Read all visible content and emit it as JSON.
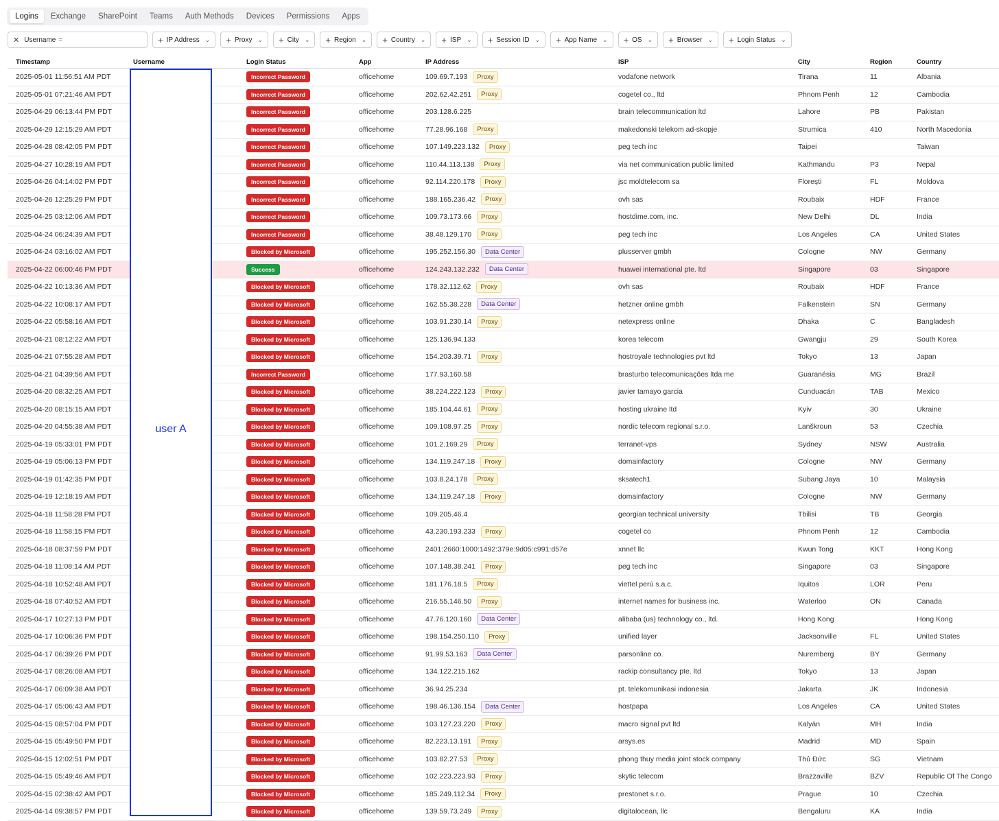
{
  "tabs": [
    {
      "label": "Logins",
      "active": true
    },
    {
      "label": "Exchange"
    },
    {
      "label": "SharePoint"
    },
    {
      "label": "Teams"
    },
    {
      "label": "Auth Methods"
    },
    {
      "label": "Devices"
    },
    {
      "label": "Permissions"
    },
    {
      "label": "Apps"
    }
  ],
  "filter": {
    "field": "Username",
    "operator": "=",
    "remove_icon": "close-icon"
  },
  "filter_chips": [
    "IP Address",
    "Proxy",
    "City",
    "Region",
    "Country",
    "ISP",
    "Session ID",
    "App Name",
    "OS",
    "Browser",
    "Login Status"
  ],
  "columns": {
    "timestamp": "Timestamp",
    "username": "Username",
    "login_status": "Login Status",
    "app": "App",
    "ip": "IP Address",
    "isp": "ISP",
    "city": "City",
    "region": "Region",
    "country": "Country"
  },
  "redaction_label": "user A",
  "colors": {
    "blocked": "#d42a2a",
    "success": "#1e9b45",
    "highlight_row": "#fde4e6",
    "redaction_border": "#1a36e6"
  },
  "rows": [
    [
      "2025-05-01 11:56:51 AM PDT",
      "Incorrect Password",
      "officehome",
      "109.69.7.193",
      "Proxy",
      "vodafone network",
      "Tirana",
      "11",
      "Albania"
    ],
    [
      "2025-05-01 07:21:46 AM PDT",
      "Incorrect Password",
      "officehome",
      "202.62.42.251",
      "Proxy",
      "cogetel co., ltd",
      "Phnom Penh",
      "12",
      "Cambodia"
    ],
    [
      "2025-04-29 06:13:44 PM PDT",
      "Incorrect Password",
      "officehome",
      "203.128.6.225",
      "",
      "brain telecommunication ltd",
      "Lahore",
      "PB",
      "Pakistan"
    ],
    [
      "2025-04-29 12:15:29 AM PDT",
      "Incorrect Password",
      "officehome",
      "77.28.96.168",
      "Proxy",
      "makedonski telekom ad-skopje",
      "Strumica",
      "410",
      "North Macedonia"
    ],
    [
      "2025-04-28 08:42:05 PM PDT",
      "Incorrect Password",
      "officehome",
      "107.149.223.132",
      "Proxy",
      "peg tech inc",
      "Taipei",
      "",
      "Taiwan"
    ],
    [
      "2025-04-27 10:28:19 AM PDT",
      "Incorrect Password",
      "officehome",
      "110.44.113.138",
      "Proxy",
      "via net communication public limited",
      "Kathmandu",
      "P3",
      "Nepal"
    ],
    [
      "2025-04-26 04:14:02 PM PDT",
      "Incorrect Password",
      "officehome",
      "92.114.220.178",
      "Proxy",
      "jsc moldtelecom sa",
      "Florești",
      "FL",
      "Moldova"
    ],
    [
      "2025-04-26 12:25:29 PM PDT",
      "Incorrect Password",
      "officehome",
      "188.165.236.42",
      "Proxy",
      "ovh sas",
      "Roubaix",
      "HDF",
      "France"
    ],
    [
      "2025-04-25 03:12:06 AM PDT",
      "Incorrect Password",
      "officehome",
      "109.73.173.66",
      "Proxy",
      "hostdime.com, inc.",
      "New Delhi",
      "DL",
      "India"
    ],
    [
      "2025-04-24 06:24:39 AM PDT",
      "Incorrect Password",
      "officehome",
      "38.48.129.170",
      "Proxy",
      "peg tech inc",
      "Los Angeles",
      "CA",
      "United States"
    ],
    [
      "2025-04-24 03:16:02 AM PDT",
      "Blocked by Microsoft",
      "officehome",
      "195.252.156.30",
      "Data Center",
      "plusserver gmbh",
      "Cologne",
      "NW",
      "Germany"
    ],
    [
      "2025-04-22 06:00:46 PM PDT",
      "Success",
      "officehome",
      "124.243.132.232",
      "Data Center",
      "huawei international pte. ltd",
      "Singapore",
      "03",
      "Singapore"
    ],
    [
      "2025-04-22 10:13:36 AM PDT",
      "Blocked by Microsoft",
      "officehome",
      "178.32.112.62",
      "Proxy",
      "ovh sas",
      "Roubaix",
      "HDF",
      "France"
    ],
    [
      "2025-04-22 10:08:17 AM PDT",
      "Blocked by Microsoft",
      "officehome",
      "162.55.38.228",
      "Data Center",
      "hetzner online gmbh",
      "Falkenstein",
      "SN",
      "Germany"
    ],
    [
      "2025-04-22 05:58:16 AM PDT",
      "Blocked by Microsoft",
      "officehome",
      "103.91.230.14",
      "Proxy",
      "netexpress online",
      "Dhaka",
      "C",
      "Bangladesh"
    ],
    [
      "2025-04-21 08:12:22 AM PDT",
      "Blocked by Microsoft",
      "officehome",
      "125.136.94.133",
      "",
      "korea telecom",
      "Gwangju",
      "29",
      "South Korea"
    ],
    [
      "2025-04-21 07:55:28 AM PDT",
      "Blocked by Microsoft",
      "officehome",
      "154.203.39.71",
      "Proxy",
      "hostroyale technologies pvt ltd",
      "Tokyo",
      "13",
      "Japan"
    ],
    [
      "2025-04-21 04:39:56 AM PDT",
      "Incorrect Password",
      "officehome",
      "177.93.160.58",
      "",
      "brasturbo telecomunicações ltda me",
      "Guaranésia",
      "MG",
      "Brazil"
    ],
    [
      "2025-04-20 08:32:25 AM PDT",
      "Blocked by Microsoft",
      "officehome",
      "38.224.222.123",
      "Proxy",
      "javier tamayo garcia",
      "Cunduacán",
      "TAB",
      "Mexico"
    ],
    [
      "2025-04-20 08:15:15 AM PDT",
      "Blocked by Microsoft",
      "officehome",
      "185.104.44.61",
      "Proxy",
      "hosting ukraine ltd",
      "Kyiv",
      "30",
      "Ukraine"
    ],
    [
      "2025-04-20 04:55:38 AM PDT",
      "Blocked by Microsoft",
      "officehome",
      "109.108.97.25",
      "Proxy",
      "nordic telecom regional s.r.o.",
      "Lanškroun",
      "53",
      "Czechia"
    ],
    [
      "2025-04-19 05:33:01 PM PDT",
      "Blocked by Microsoft",
      "officehome",
      "101.2.169.29",
      "Proxy",
      "terranet-vps",
      "Sydney",
      "NSW",
      "Australia"
    ],
    [
      "2025-04-19 05:06:13 PM PDT",
      "Blocked by Microsoft",
      "officehome",
      "134.119.247.18",
      "Proxy",
      "domainfactory",
      "Cologne",
      "NW",
      "Germany"
    ],
    [
      "2025-04-19 01:42:35 PM PDT",
      "Blocked by Microsoft",
      "officehome",
      "103.8.24.178",
      "Proxy",
      "sksatech1",
      "Subang Jaya",
      "10",
      "Malaysia"
    ],
    [
      "2025-04-19 12:18:19 AM PDT",
      "Blocked by Microsoft",
      "officehome",
      "134.119.247.18",
      "Proxy",
      "domainfactory",
      "Cologne",
      "NW",
      "Germany"
    ],
    [
      "2025-04-18 11:58:28 PM PDT",
      "Blocked by Microsoft",
      "officehome",
      "109.205.46.4",
      "",
      "georgian technical university",
      "Tbilisi",
      "TB",
      "Georgia"
    ],
    [
      "2025-04-18 11:58:15 PM PDT",
      "Blocked by Microsoft",
      "officehome",
      "43.230.193.233",
      "Proxy",
      "cogetel co",
      "Phnom Penh",
      "12",
      "Cambodia"
    ],
    [
      "2025-04-18 08:37:59 PM PDT",
      "Blocked by Microsoft",
      "officehome",
      "2401:2660:1000:1492:379e:9d05:c991:d57e",
      "",
      "xnnet llc",
      "Kwun Tong",
      "KKT",
      "Hong Kong"
    ],
    [
      "2025-04-18 11:08:14 AM PDT",
      "Blocked by Microsoft",
      "officehome",
      "107.148.38.241",
      "Proxy",
      "peg tech inc",
      "Singapore",
      "03",
      "Singapore"
    ],
    [
      "2025-04-18 10:52:48 AM PDT",
      "Blocked by Microsoft",
      "officehome",
      "181.176.18.5",
      "Proxy",
      "viettel perú s.a.c.",
      "Iquitos",
      "LOR",
      "Peru"
    ],
    [
      "2025-04-18 07:40:52 AM PDT",
      "Blocked by Microsoft",
      "officehome",
      "216.55.146.50",
      "Proxy",
      "internet names for business inc.",
      "Waterloo",
      "ON",
      "Canada"
    ],
    [
      "2025-04-17 10:27:13 PM PDT",
      "Blocked by Microsoft",
      "officehome",
      "47.76.120.160",
      "Data Center",
      "alibaba (us) technology co., ltd.",
      "Hong Kong",
      "",
      "Hong Kong"
    ],
    [
      "2025-04-17 10:06:36 PM PDT",
      "Blocked by Microsoft",
      "officehome",
      "198.154.250.110",
      "Proxy",
      "unified layer",
      "Jacksonville",
      "FL",
      "United States"
    ],
    [
      "2025-04-17 06:39:26 PM PDT",
      "Blocked by Microsoft",
      "officehome",
      "91.99.53.163",
      "Data Center",
      "parsonline co.",
      "Nuremberg",
      "BY",
      "Germany"
    ],
    [
      "2025-04-17 08:26:08 AM PDT",
      "Blocked by Microsoft",
      "officehome",
      "134.122.215.162",
      "",
      "rackip consultancy pte. ltd",
      "Tokyo",
      "13",
      "Japan"
    ],
    [
      "2025-04-17 06:09:38 AM PDT",
      "Blocked by Microsoft",
      "officehome",
      "36.94.25.234",
      "",
      "pt. telekomunikasi indonesia",
      "Jakarta",
      "JK",
      "Indonesia"
    ],
    [
      "2025-04-17 05:06:43 AM PDT",
      "Blocked by Microsoft",
      "officehome",
      "198.46.136.154",
      "Data Center",
      "hostpapa",
      "Los Angeles",
      "CA",
      "United States"
    ],
    [
      "2025-04-15 08:57:04 PM PDT",
      "Blocked by Microsoft",
      "officehome",
      "103.127.23.220",
      "Proxy",
      "macro signal pvt ltd",
      "Kalyān",
      "MH",
      "India"
    ],
    [
      "2025-04-15 05:49:50 PM PDT",
      "Blocked by Microsoft",
      "officehome",
      "82.223.13.191",
      "Proxy",
      "arsys.es",
      "Madrid",
      "MD",
      "Spain"
    ],
    [
      "2025-04-15 12:02:51 PM PDT",
      "Blocked by Microsoft",
      "officehome",
      "103.82.27.53",
      "Proxy",
      "phong thuy media joint stock company",
      "Thủ Đức",
      "SG",
      "Vietnam"
    ],
    [
      "2025-04-15 05:49:46 AM PDT",
      "Blocked by Microsoft",
      "officehome",
      "102.223.223.93",
      "Proxy",
      "skytic telecom",
      "Brazzaville",
      "BZV",
      "Republic Of The Congo"
    ],
    [
      "2025-04-15 02:38:42 AM PDT",
      "Blocked by Microsoft",
      "officehome",
      "185.249.112.34",
      "Proxy",
      "prestonet s.r.o.",
      "Prague",
      "10",
      "Czechia"
    ],
    [
      "2025-04-14 09:38:57 PM PDT",
      "Blocked by Microsoft",
      "officehome",
      "139.59.73.249",
      "Proxy",
      "digitalocean, llc",
      "Bengaluru",
      "KA",
      "India"
    ]
  ]
}
